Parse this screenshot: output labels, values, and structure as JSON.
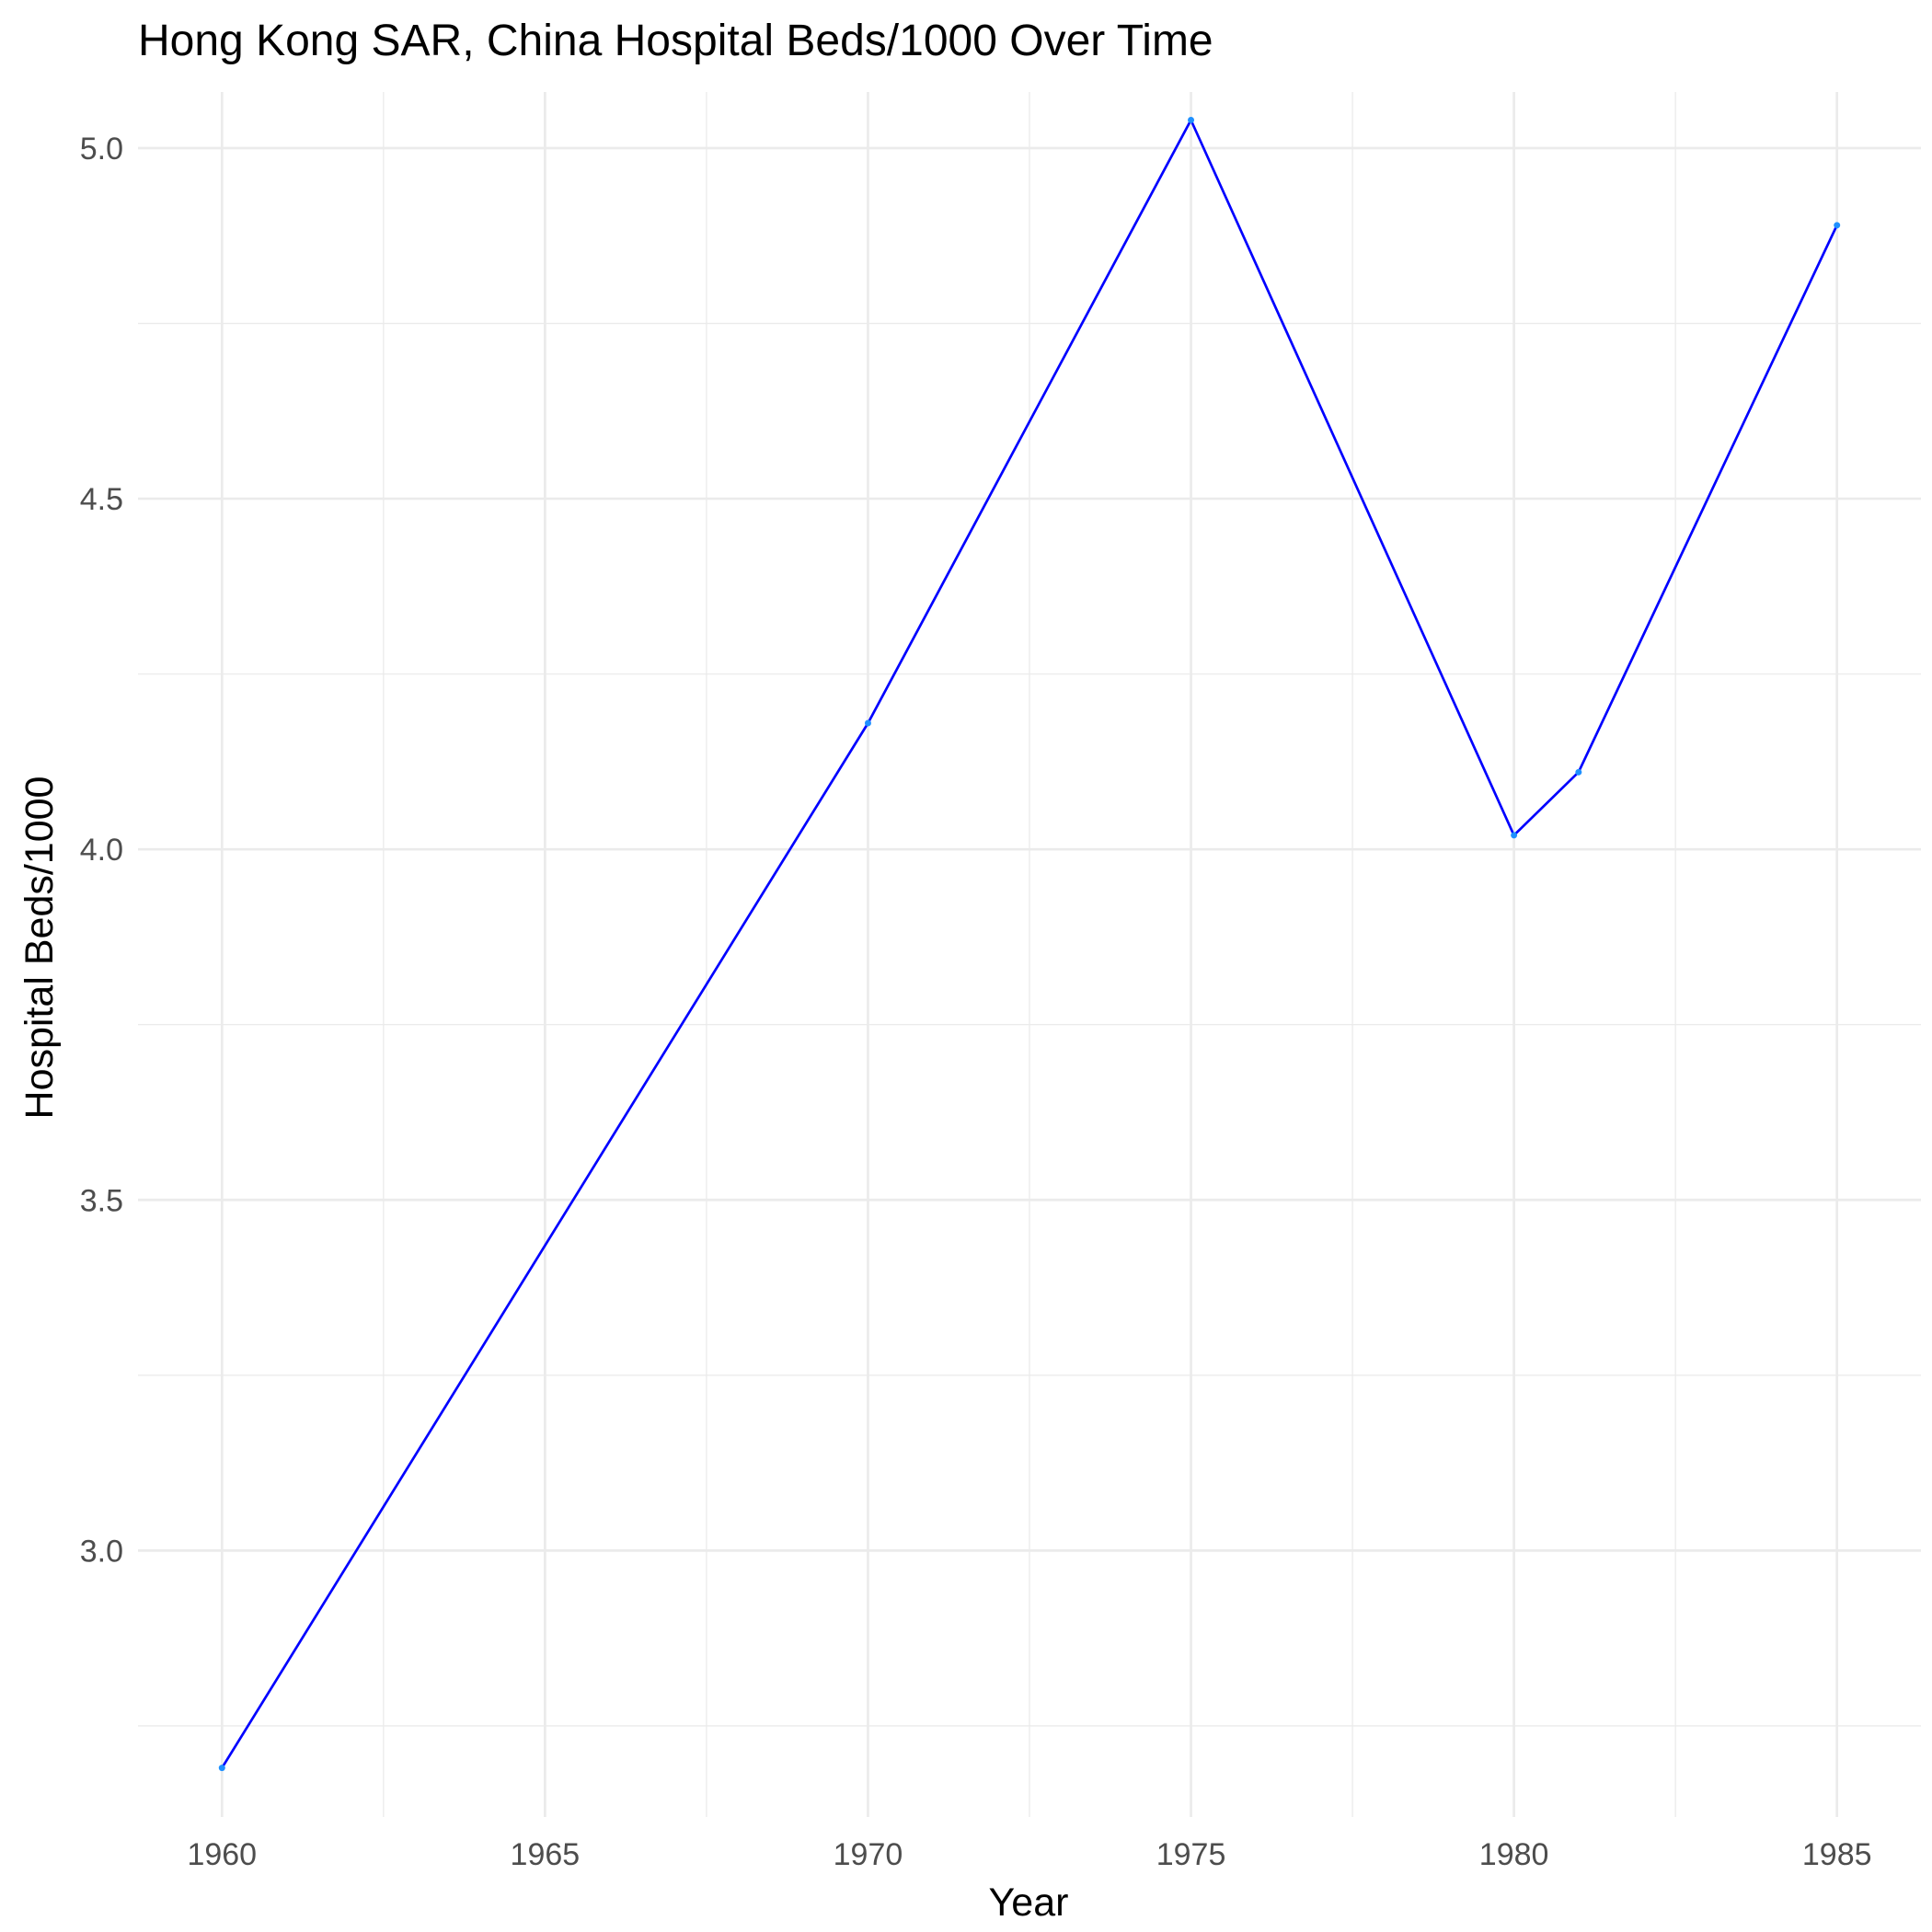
{
  "chart_data": {
    "type": "line",
    "title": "Hong Kong SAR, China Hospital Beds/1000 Over Time",
    "xlabel": "Year",
    "ylabel": "Hospital Beds/1000",
    "x": [
      1960,
      1970,
      1975,
      1980,
      1981,
      1985
    ],
    "series": [
      {
        "values": [
          2.69,
          4.18,
          5.04,
          4.02,
          4.11,
          4.89
        ]
      }
    ],
    "xlim": [
      1958.7,
      1986.3
    ],
    "ylim": [
      2.62,
      5.08
    ],
    "x_ticks": [
      "1960",
      "1965",
      "1970",
      "1975",
      "1980",
      "1985"
    ],
    "y_ticks": [
      "3.0",
      "3.5",
      "4.0",
      "4.5",
      "5.0"
    ],
    "grid": true,
    "line_color": "#0000ff",
    "point_color": "#1e90ff"
  }
}
